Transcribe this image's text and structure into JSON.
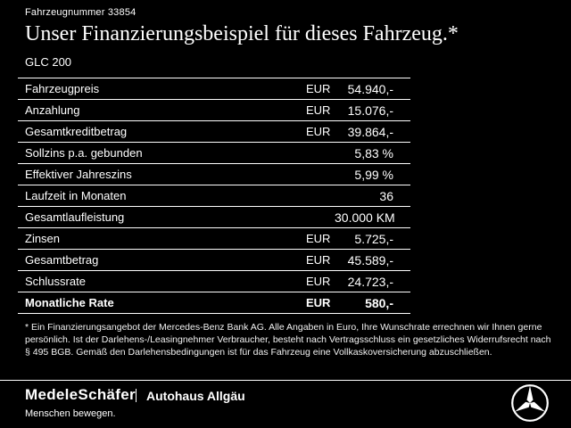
{
  "header": {
    "vehicle_number": "Fahrzeugnummer 33854",
    "title": "Unser Finanzierungsbeispiel für dieses Fahrzeug.*",
    "model": "GLC 200"
  },
  "table": {
    "rows": [
      {
        "label": "Fahrzeugpreis",
        "currency": "EUR",
        "value": "54.940,-"
      },
      {
        "label": "Anzahlung",
        "currency": "EUR",
        "value": "15.076,-"
      },
      {
        "label": "Gesamtkreditbetrag",
        "currency": "EUR",
        "value": "39.864,-"
      },
      {
        "label": "Sollzins p.a. gebunden",
        "currency": "",
        "value": "5,83 %"
      },
      {
        "label": "Effektiver Jahreszins",
        "currency": "",
        "value": "5,99 %"
      },
      {
        "label": "Laufzeit in Monaten",
        "currency": "",
        "value": "36"
      },
      {
        "label": "Gesamtlaufleistung",
        "currency": "",
        "value": "30.000 KM"
      },
      {
        "label": "Zinsen",
        "currency": "EUR",
        "value": "5.725,-"
      },
      {
        "label": "Gesamtbetrag",
        "currency": "EUR",
        "value": "45.589,-"
      },
      {
        "label": "Schlussrate",
        "currency": "EUR",
        "value": "24.723,-"
      },
      {
        "label": "Monatliche Rate",
        "currency": "EUR",
        "value": "580,-",
        "bold": true
      }
    ]
  },
  "footnote": "* Ein Finanzierungsangebot der Mercedes-Benz Bank AG. Alle Angaben in Euro, Ihre Wunschrate errechnen wir Ihnen gerne persönlich. Ist der Darlehens-/Leasingnehmer Verbraucher, besteht nach Vertragsschluss ein gesetzliches Widerrufsrecht nach § 495 BGB. Gemäß den Darlehensbedingungen ist für das Fahrzeug eine Vollkaskoversicherung abzuschließen.",
  "footer": {
    "dealer_name": "MedeleSchäfer",
    "dealer_tagline": "Menschen bewegen.",
    "dealer_secondary": "Autohaus Allgäu",
    "brand_icon": "mercedes-star-icon"
  },
  "colors": {
    "background": "#000000",
    "text": "#ffffff"
  }
}
